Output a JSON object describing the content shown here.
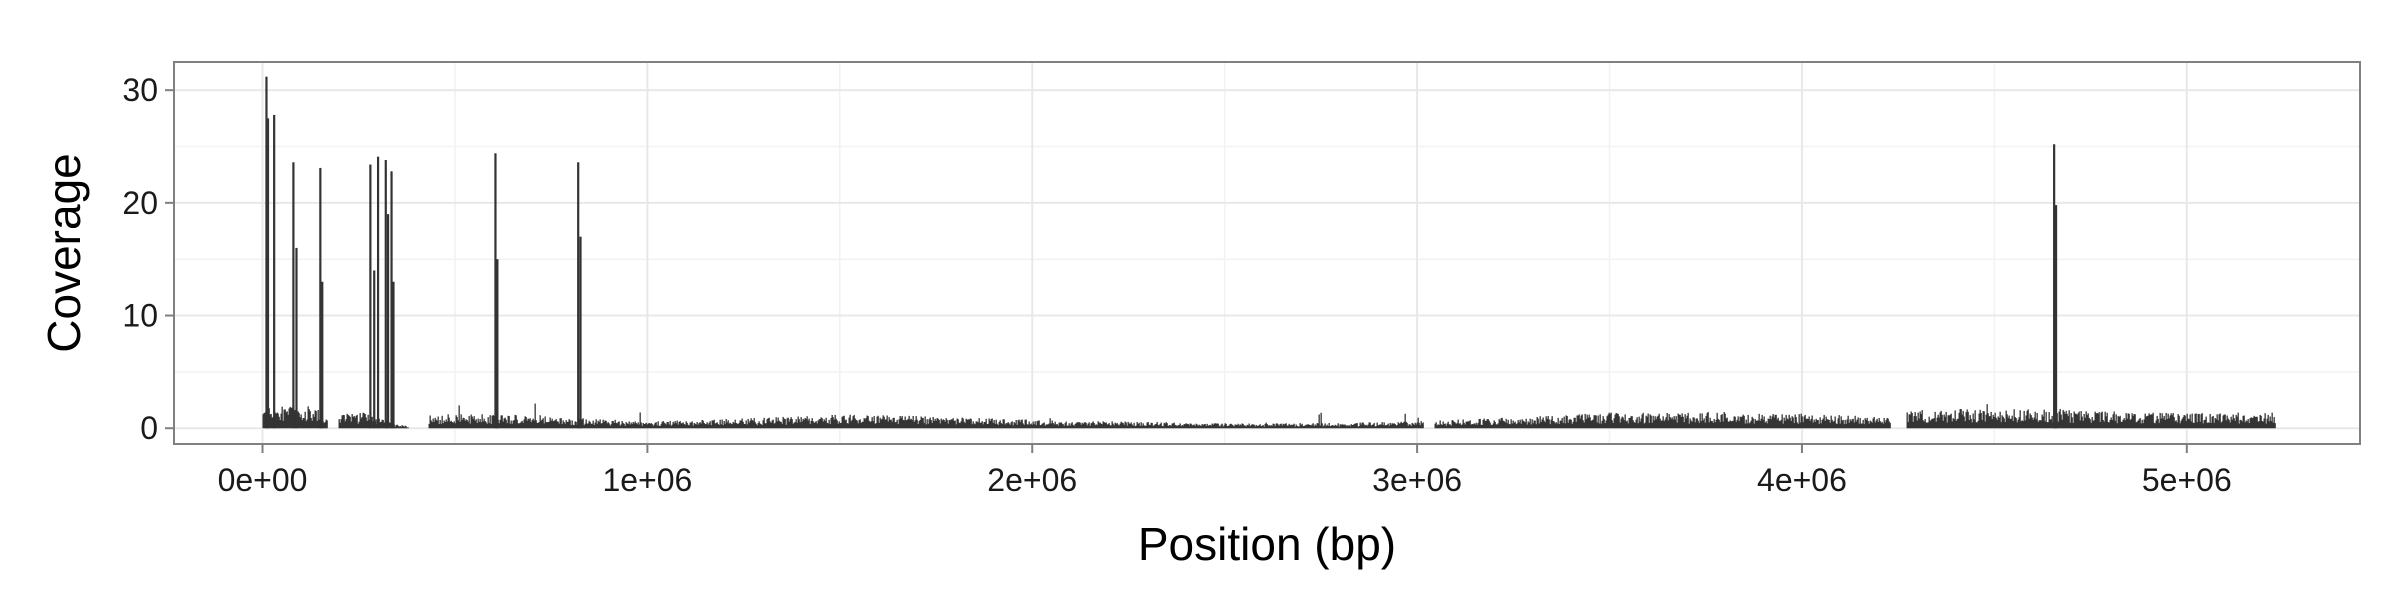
{
  "chart_data": {
    "type": "bar",
    "title": "",
    "xlabel": "Position (bp)",
    "ylabel": "Coverage",
    "xlim": [
      -230000,
      5450000
    ],
    "ylim": [
      -1.4,
      32.5
    ],
    "x_ticks": [
      {
        "value": 0,
        "label": "0e+00"
      },
      {
        "value": 1000000,
        "label": "1e+06"
      },
      {
        "value": 2000000,
        "label": "2e+06"
      },
      {
        "value": 3000000,
        "label": "3e+06"
      },
      {
        "value": 4000000,
        "label": "4e+06"
      },
      {
        "value": 5000000,
        "label": "5e+06"
      }
    ],
    "y_ticks": [
      {
        "value": 0,
        "label": "0"
      },
      {
        "value": 10,
        "label": "10"
      },
      {
        "value": 20,
        "label": "20"
      },
      {
        "value": 30,
        "label": "30"
      }
    ],
    "grid": true,
    "legend": "none",
    "bar_color": "#333333",
    "data_range": [
      0,
      5230000
    ],
    "baseline_profile": [
      [
        0,
        1.2
      ],
      [
        150000,
        1.3
      ],
      [
        180000,
        0.0
      ],
      [
        200000,
        0.8
      ],
      [
        260000,
        0.9
      ],
      [
        390000,
        0.0
      ],
      [
        430000,
        0.8
      ],
      [
        700000,
        0.8
      ],
      [
        800000,
        0.6
      ],
      [
        1000000,
        0.4
      ],
      [
        1300000,
        0.6
      ],
      [
        1500000,
        0.8
      ],
      [
        1700000,
        0.7
      ],
      [
        2000000,
        0.5
      ],
      [
        2200000,
        0.4
      ],
      [
        2500000,
        0.3
      ],
      [
        2800000,
        0.3
      ],
      [
        3000000,
        0.4
      ],
      [
        3200000,
        0.6
      ],
      [
        3500000,
        0.9
      ],
      [
        3800000,
        0.9
      ],
      [
        4100000,
        0.8
      ],
      [
        4250000,
        0.7
      ],
      [
        4280000,
        1.1
      ],
      [
        4600000,
        1.1
      ],
      [
        4900000,
        0.9
      ],
      [
        5230000,
        0.9
      ]
    ],
    "gaps": [
      [
        168000,
        195000
      ],
      [
        385000,
        430000
      ],
      [
        3015000,
        3045000
      ],
      [
        4230000,
        4270000
      ]
    ],
    "peaks": [
      {
        "x": 10000,
        "y": 31.2
      },
      {
        "x": 14000,
        "y": 27.5
      },
      {
        "x": 30000,
        "y": 27.8
      },
      {
        "x": 80000,
        "y": 23.6
      },
      {
        "x": 88000,
        "y": 16.0
      },
      {
        "x": 150000,
        "y": 23.1
      },
      {
        "x": 155000,
        "y": 13.0
      },
      {
        "x": 280000,
        "y": 23.4
      },
      {
        "x": 290000,
        "y": 14.0
      },
      {
        "x": 300000,
        "y": 24.1
      },
      {
        "x": 320000,
        "y": 23.8
      },
      {
        "x": 326000,
        "y": 19.0
      },
      {
        "x": 335000,
        "y": 22.8
      },
      {
        "x": 340000,
        "y": 13.0
      },
      {
        "x": 605000,
        "y": 24.4
      },
      {
        "x": 610000,
        "y": 15.0
      },
      {
        "x": 820000,
        "y": 23.6
      },
      {
        "x": 826000,
        "y": 17.0
      },
      {
        "x": 4655000,
        "y": 25.2
      },
      {
        "x": 4660000,
        "y": 19.8
      }
    ]
  }
}
